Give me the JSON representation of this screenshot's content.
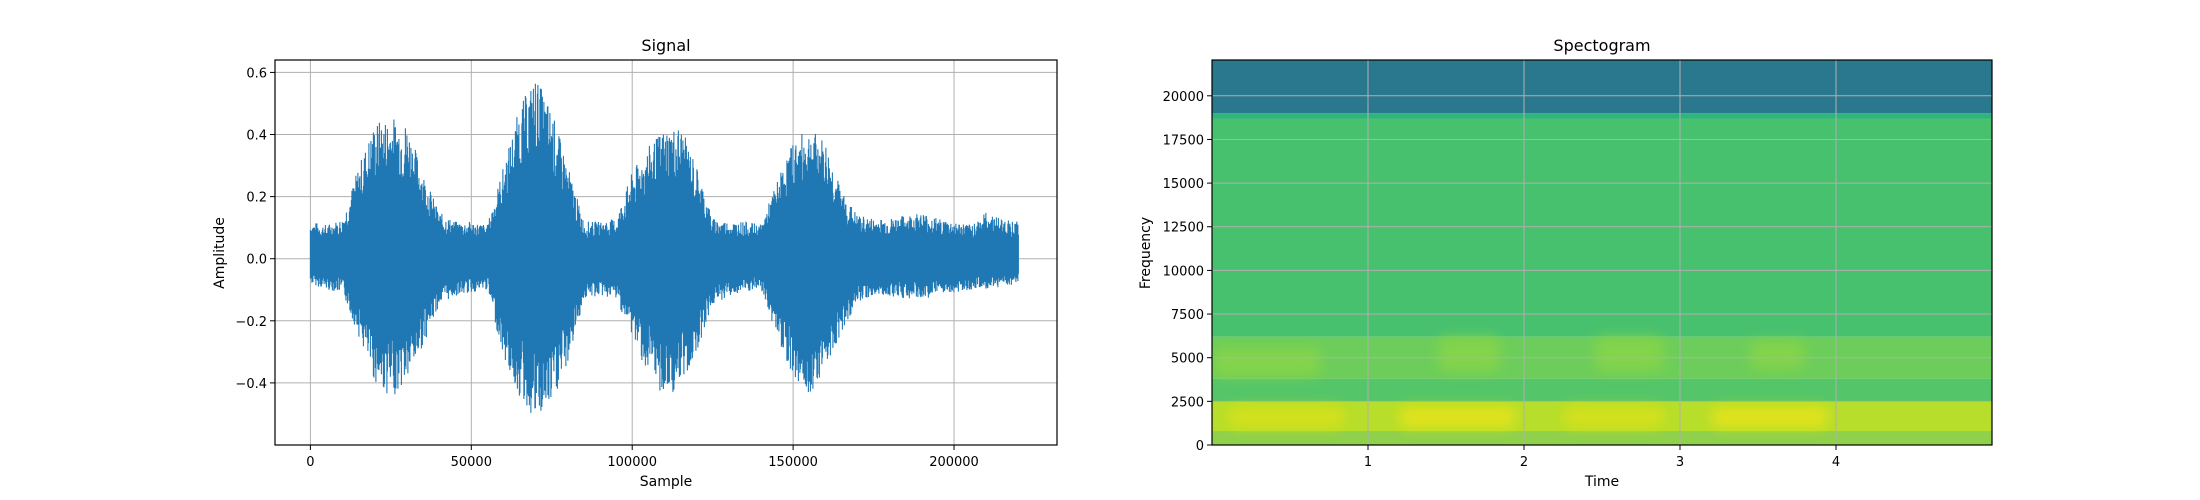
{
  "chart_data": [
    {
      "type": "line",
      "title": "Signal",
      "xlabel": "Sample",
      "ylabel": "Amplitude",
      "xlim": [
        -11000,
        232000
      ],
      "ylim": [
        -0.6,
        0.64
      ],
      "xticks": [
        0,
        50000,
        100000,
        150000,
        200000
      ],
      "xtick_labels": [
        "0",
        "50000",
        "100000",
        "150000",
        "200000"
      ],
      "yticks": [
        -0.4,
        -0.2,
        0.0,
        0.2,
        0.4,
        0.6
      ],
      "ytick_labels": [
        "−0.4",
        "−0.2",
        "0.0",
        "0.2",
        "0.4",
        "0.6"
      ],
      "grid": true,
      "color": "#1f77b4",
      "series": [
        {
          "x": [
            0,
            5000,
            10000,
            15000,
            20000,
            25000,
            30000,
            35000,
            40000,
            45000,
            50000,
            55000,
            60000,
            65000,
            70000,
            75000,
            80000,
            85000,
            90000,
            95000,
            100000,
            105000,
            110000,
            115000,
            120000,
            125000,
            130000,
            135000,
            140000,
            145000,
            150000,
            155000,
            160000,
            165000,
            170000,
            175000,
            180000,
            185000,
            190000,
            195000,
            200000,
            205000,
            210000,
            215000,
            220000
          ],
          "y_max": [
            0.12,
            0.11,
            0.13,
            0.3,
            0.44,
            0.46,
            0.44,
            0.28,
            0.15,
            0.12,
            0.12,
            0.11,
            0.3,
            0.49,
            0.59,
            0.48,
            0.3,
            0.12,
            0.12,
            0.13,
            0.28,
            0.36,
            0.42,
            0.43,
            0.3,
            0.13,
            0.12,
            0.12,
            0.11,
            0.25,
            0.38,
            0.42,
            0.38,
            0.22,
            0.14,
            0.13,
            0.13,
            0.14,
            0.15,
            0.13,
            0.12,
            0.11,
            0.15,
            0.13,
            0.12
          ],
          "y_min": [
            -0.08,
            -0.1,
            -0.11,
            -0.25,
            -0.4,
            -0.45,
            -0.4,
            -0.28,
            -0.15,
            -0.12,
            -0.11,
            -0.1,
            -0.32,
            -0.45,
            -0.53,
            -0.48,
            -0.34,
            -0.13,
            -0.12,
            -0.13,
            -0.25,
            -0.38,
            -0.45,
            -0.42,
            -0.3,
            -0.15,
            -0.12,
            -0.11,
            -0.1,
            -0.25,
            -0.38,
            -0.44,
            -0.35,
            -0.24,
            -0.14,
            -0.12,
            -0.12,
            -0.13,
            -0.13,
            -0.12,
            -0.11,
            -0.1,
            -0.1,
            -0.09,
            -0.08
          ]
        }
      ]
    },
    {
      "type": "heatmap",
      "title": "Spectogram",
      "xlabel": "Time",
      "ylabel": "Frequency",
      "xlim": [
        0,
        5
      ],
      "ylim": [
        0,
        22050
      ],
      "xticks": [
        1,
        2,
        3,
        4
      ],
      "xtick_labels": [
        "1",
        "2",
        "3",
        "4"
      ],
      "yticks": [
        0,
        2500,
        5000,
        7500,
        10000,
        12500,
        15000,
        17500,
        20000
      ],
      "ytick_labels": [
        "0",
        "2500",
        "5000",
        "7500",
        "10000",
        "12500",
        "15000",
        "17500",
        "20000"
      ],
      "grid": true,
      "colormap": "viridis",
      "bands": [
        {
          "from": 0,
          "to": 800,
          "color": "#8fd14a"
        },
        {
          "from": 800,
          "to": 2500,
          "color": "#b7de2a"
        },
        {
          "from": 2500,
          "to": 3800,
          "color": "#54c568"
        },
        {
          "from": 3800,
          "to": 6200,
          "color": "#6ccd5a"
        },
        {
          "from": 6200,
          "to": 18700,
          "color": "#48c16e"
        },
        {
          "from": 18700,
          "to": 19000,
          "color": "#2fb47c"
        },
        {
          "from": 19000,
          "to": 22050,
          "color": "#2a788e"
        }
      ],
      "hotspots": [
        {
          "t0": 0.1,
          "t1": 0.85,
          "f0": 1000,
          "f1": 2200,
          "color": "#d8e219"
        },
        {
          "t0": 1.2,
          "t1": 1.95,
          "f0": 1000,
          "f1": 2200,
          "color": "#e7e419"
        },
        {
          "t0": 2.25,
          "t1": 2.9,
          "f0": 1000,
          "f1": 2200,
          "color": "#d8e219"
        },
        {
          "t0": 3.2,
          "t1": 3.95,
          "f0": 1000,
          "f1": 2200,
          "color": "#e7e419"
        },
        {
          "t0": 0.0,
          "t1": 0.7,
          "f0": 3900,
          "f1": 5600,
          "color": "#86d549"
        },
        {
          "t0": 1.45,
          "t1": 1.85,
          "f0": 4200,
          "f1": 6200,
          "color": "#86d549"
        },
        {
          "t0": 2.45,
          "t1": 2.9,
          "f0": 4200,
          "f1": 6200,
          "color": "#86d549"
        },
        {
          "t0": 3.45,
          "t1": 3.8,
          "f0": 4300,
          "f1": 6000,
          "color": "#86d549"
        }
      ]
    }
  ]
}
